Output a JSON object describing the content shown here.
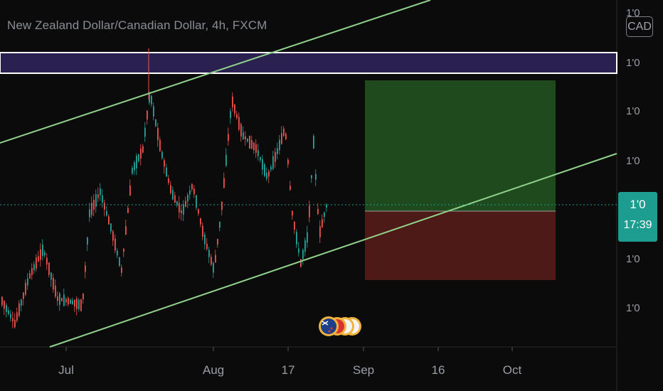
{
  "header": {
    "title": "New Zealand Dollar/Canadian Dollar, 4h, FXCM",
    "currency_badge": "CAD"
  },
  "price_badge": {
    "price": "1'0",
    "countdown": "17:39",
    "color": "#1d9d8f"
  },
  "colors": {
    "background": "#0b0b0b",
    "up_candle": "#26a69a",
    "down_candle": "#ef5350",
    "channel_line": "#8fd18b",
    "resistance_zone": "#2a2150",
    "profit_zone": "#1f4a1e",
    "loss_zone": "#4e1a17"
  },
  "chart_data": {
    "type": "candlestick",
    "title": "New Zealand Dollar/Canadian Dollar, 4h, FXCM",
    "y_tick_labels": [
      "1'0",
      "1'0",
      "1'0",
      "1'0",
      "1'0",
      "1'0",
      "1'0"
    ],
    "x_tick_labels": [
      "Jul",
      "Aug",
      "17",
      "Sep",
      "16",
      "Oct"
    ],
    "current_price_label": "1'0",
    "bar_countdown": "17:39",
    "overlays": [
      "ascending channel (two parallel trend lines)",
      "horizontal resistance zone",
      "long position tool (profit / stop zones)"
    ],
    "events": [
      "NZD / CAD currency event flags"
    ]
  }
}
